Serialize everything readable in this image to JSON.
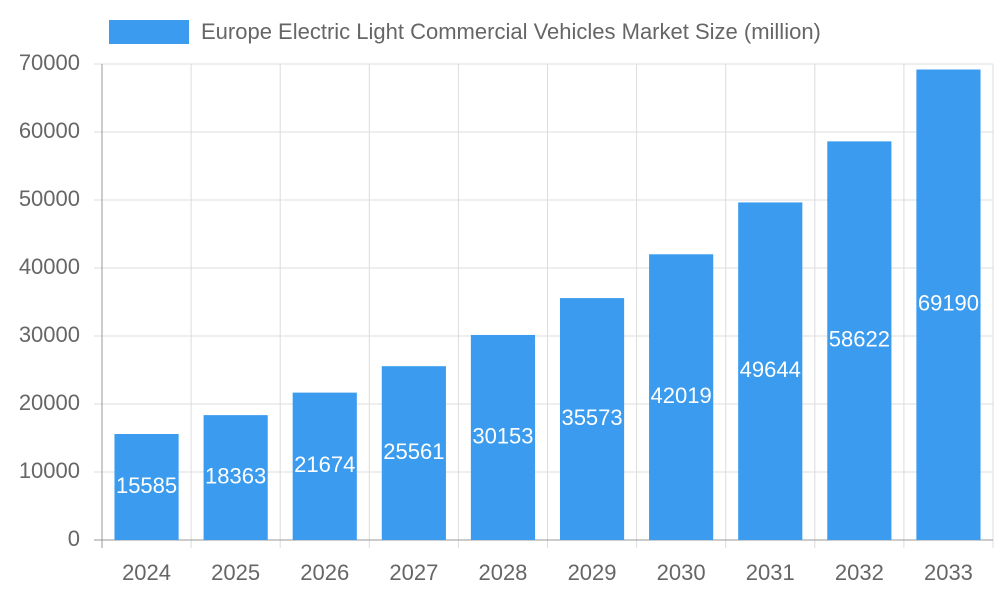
{
  "chart_data": {
    "type": "bar",
    "legend": "Europe Electric Light Commercial Vehicles Market Size (million)",
    "categories": [
      "2024",
      "2025",
      "2026",
      "2027",
      "2028",
      "2029",
      "2030",
      "2031",
      "2032",
      "2033"
    ],
    "values": [
      15585,
      18363,
      21674,
      25561,
      30153,
      35573,
      42019,
      49644,
      58622,
      69190
    ],
    "color": "#3a9bef",
    "ylim": [
      0,
      70000
    ],
    "yticks": [
      0,
      10000,
      20000,
      30000,
      40000,
      50000,
      60000,
      70000
    ],
    "grid": true
  }
}
